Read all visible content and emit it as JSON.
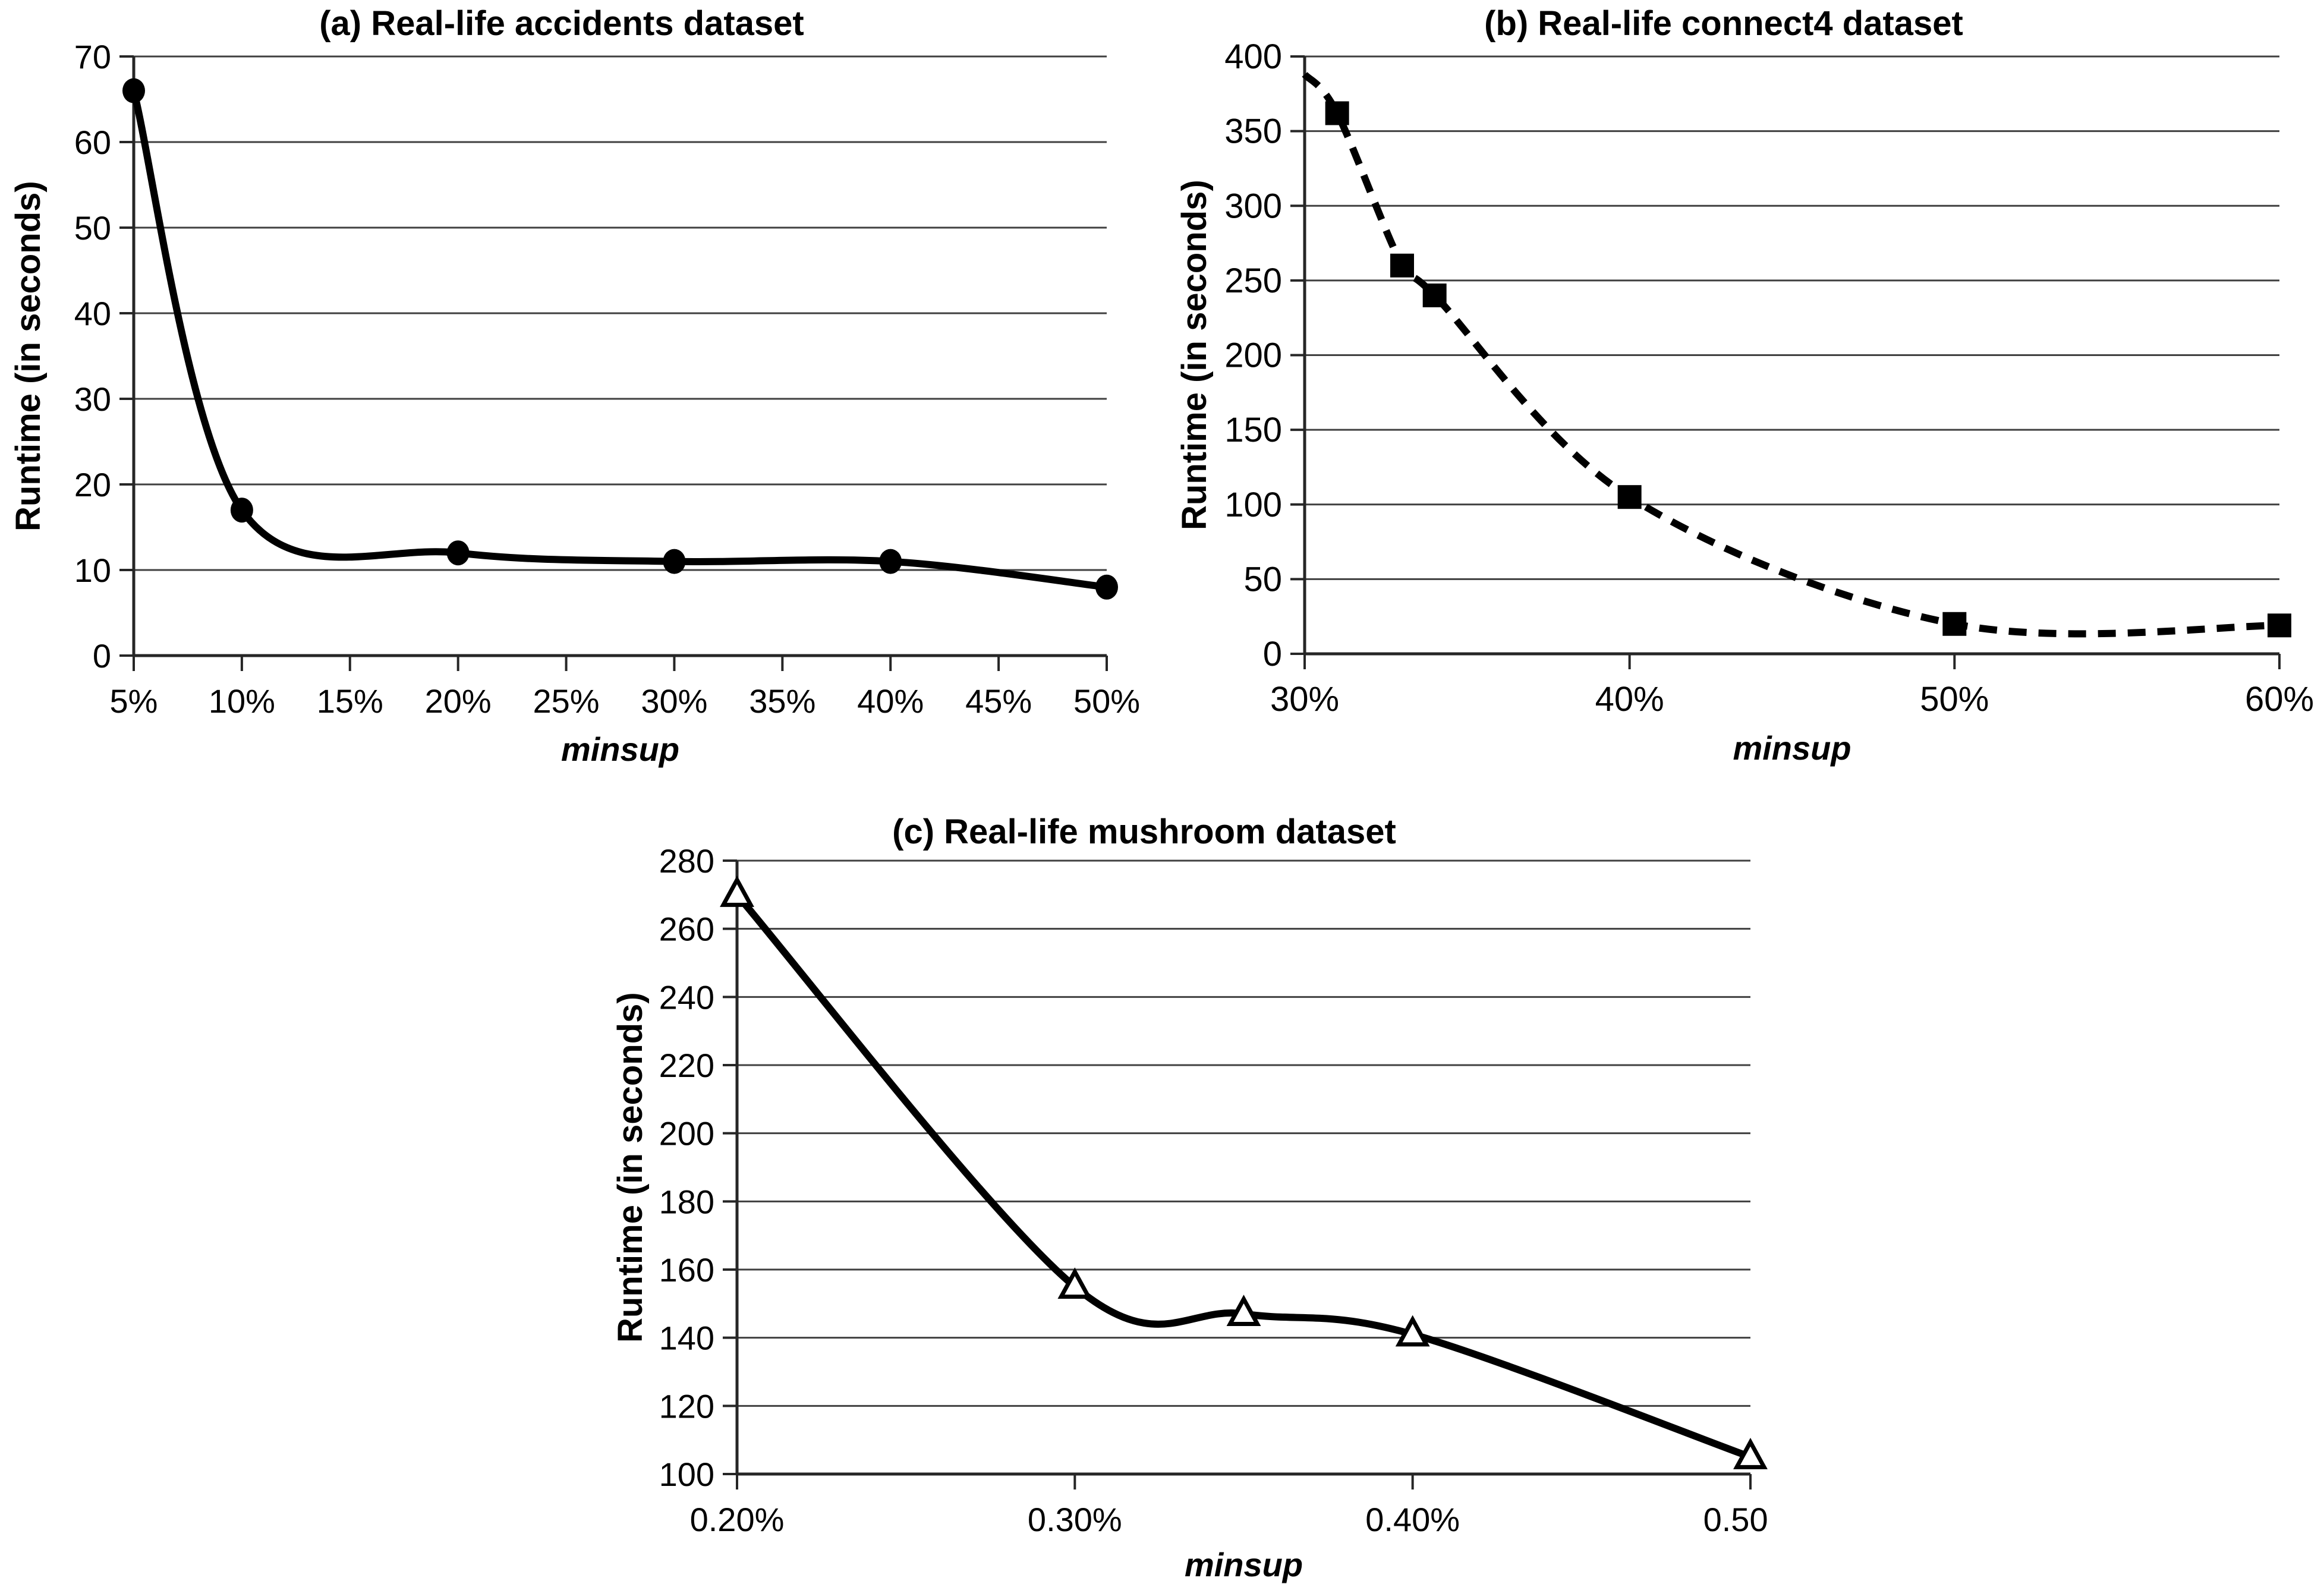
{
  "chart_data": [
    {
      "id": "a",
      "type": "line",
      "title": "(a) Real-life accidents dataset",
      "ylabel": "Runtime (in seconds)",
      "xlabel": "minsup",
      "line_style": "solid",
      "marker": "filled-circle",
      "series": [
        {
          "name": "runtime",
          "x": [
            5,
            10,
            20,
            30,
            40,
            50
          ],
          "y": [
            66,
            17,
            12,
            11,
            11,
            8
          ],
          "marker_skip": []
        }
      ],
      "x_ticks": {
        "values": [
          5,
          10,
          15,
          20,
          25,
          30,
          35,
          40,
          45,
          50
        ],
        "labels": [
          "5%",
          "10%",
          "15%",
          "20%",
          "25%",
          "30%",
          "35%",
          "40%",
          "45%",
          "50%"
        ]
      },
      "y_ticks": [
        0,
        10,
        20,
        30,
        40,
        50,
        60,
        70
      ],
      "xlim": [
        5,
        50
      ],
      "ylim": [
        0,
        70
      ],
      "grid": true,
      "legend": "none",
      "line_color": "#000000",
      "grid_color": "#404040"
    },
    {
      "id": "b",
      "type": "line",
      "title": "(b) Real-life connect4 dataset",
      "ylabel": "Runtime (in seconds)",
      "xlabel": "minsup",
      "line_style": "dashed",
      "marker": "filled-square",
      "series": [
        {
          "name": "runtime",
          "x": [
            30,
            31,
            33,
            34,
            40,
            50,
            60
          ],
          "y": [
            388,
            362,
            260,
            240,
            105,
            20,
            19
          ],
          "marker_skip": [
            0
          ]
        }
      ],
      "x_ticks": {
        "values": [
          30,
          40,
          50,
          60
        ],
        "labels": [
          "30%",
          "40%",
          "50%",
          "60%"
        ]
      },
      "y_ticks": [
        0,
        50,
        100,
        150,
        200,
        250,
        300,
        350,
        400
      ],
      "xlim": [
        30,
        60
      ],
      "ylim": [
        0,
        400
      ],
      "grid": true,
      "legend": "none",
      "line_color": "#000000",
      "grid_color": "#404040"
    },
    {
      "id": "c",
      "type": "line",
      "title": "(c) Real-life mushroom dataset",
      "ylabel": "Runtime (in seconds)",
      "xlabel": "minsup",
      "line_style": "solid",
      "marker": "open-triangle",
      "series": [
        {
          "name": "runtime",
          "x": [
            0.2,
            0.3,
            0.35,
            0.4,
            0.5
          ],
          "y": [
            270,
            155,
            147,
            141,
            105
          ],
          "marker_skip": []
        }
      ],
      "x_ticks": {
        "values": [
          0.2,
          0.3,
          0.4,
          0.5
        ],
        "labels": [
          "0.20%",
          "0.30%",
          "0.40%",
          "0.50%"
        ]
      },
      "y_ticks": [
        100,
        120,
        140,
        160,
        180,
        200,
        220,
        240,
        260,
        280
      ],
      "xlim": [
        0.2,
        0.5
      ],
      "ylim": [
        100,
        280
      ],
      "grid": true,
      "legend": "none",
      "line_color": "#000000",
      "grid_color": "#404040"
    }
  ]
}
